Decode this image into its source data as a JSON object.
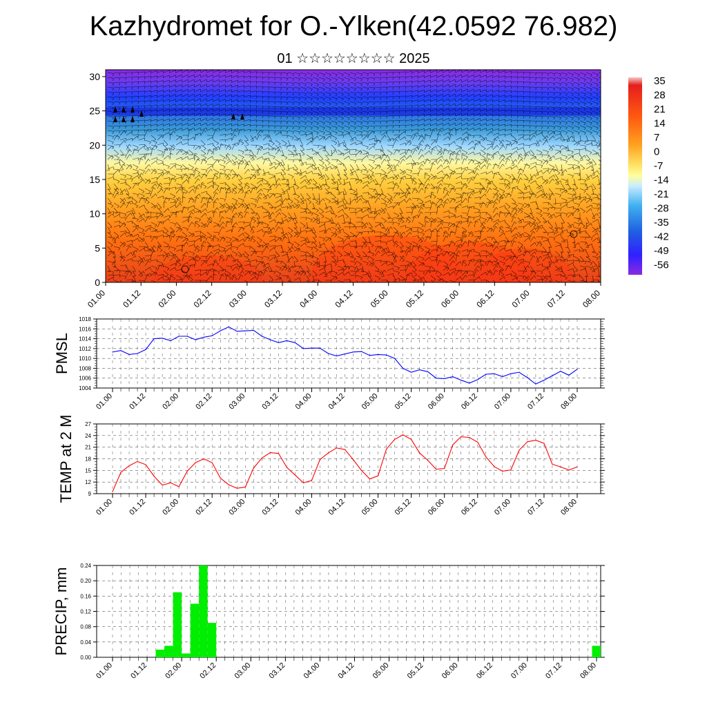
{
  "title": "Kazhydromet for O.-Ylken(42.0592 76.982)",
  "subtitle": "01 ☆☆☆☆☆☆☆☆ 2025",
  "chart_data": [
    {
      "id": "profile",
      "type": "heatmap",
      "y_ticks": [
        "0",
        "5",
        "10",
        "15",
        "20",
        "25",
        "30"
      ],
      "ylim": [
        0,
        31
      ],
      "x_ticks": [
        "01.00",
        "01.12",
        "02.00",
        "02.12",
        "03.00",
        "03.12",
        "04.00",
        "04.12",
        "05.00",
        "05.12",
        "06.00",
        "06.12",
        "07.00",
        "07.12",
        "08.00"
      ],
      "colorbar_labels": [
        "35",
        "28",
        "21",
        "14",
        "7",
        "0",
        "-7",
        "-14",
        "-21",
        "-28",
        "-35",
        "-42",
        "-49",
        "-56"
      ],
      "colors": [
        "#f0f0f0",
        "#e51e1e",
        "#ff7a00",
        "#ffc020",
        "#ffff90",
        "#80d0ff",
        "#2090e0",
        "#2040ff",
        "#8a2be2"
      ]
    },
    {
      "id": "pmsl",
      "type": "line",
      "ylabel": "PMSL",
      "ylim": [
        1004,
        1018
      ],
      "y_ticks": [
        "1004",
        "1006",
        "1008",
        "1010",
        "1012",
        "1014",
        "1016",
        "1018"
      ],
      "x_ticks": [
        "01.00",
        "01.12",
        "02.00",
        "02.12",
        "03.00",
        "03.12",
        "04.00",
        "04.12",
        "05.00",
        "05.12",
        "06.00",
        "06.12",
        "07.00",
        "07.12",
        "08.00"
      ],
      "color": "#0000ff",
      "values": [
        1011.3,
        1011.6,
        1010.8,
        1011.0,
        1011.8,
        1014.0,
        1014.1,
        1013.6,
        1014.5,
        1014.5,
        1013.8,
        1014.3,
        1014.6,
        1015.6,
        1016.4,
        1015.5,
        1015.6,
        1015.7,
        1014.5,
        1013.8,
        1013.2,
        1013.6,
        1013.2,
        1012.0,
        1012.1,
        1012.1,
        1011.0,
        1010.5,
        1010.9,
        1011.3,
        1011.4,
        1010.6,
        1010.8,
        1010.7,
        1010.0,
        1008.0,
        1007.2,
        1007.7,
        1007.3,
        1006.0,
        1005.9,
        1006.3,
        1005.6,
        1005.0,
        1005.7,
        1006.8,
        1006.9,
        1006.3,
        1006.9,
        1007.2,
        1006.1,
        1004.8,
        1005.6,
        1006.5,
        1007.4,
        1006.6,
        1007.8
      ]
    },
    {
      "id": "temp",
      "type": "line",
      "ylabel": "TEMP at 2 M",
      "ylim": [
        9,
        27
      ],
      "y_ticks": [
        "9",
        "12",
        "15",
        "18",
        "21",
        "24",
        "27"
      ],
      "x_ticks": [
        "01.00",
        "01.12",
        "02.00",
        "02.12",
        "03.00",
        "03.12",
        "04.00",
        "04.12",
        "05.00",
        "05.12",
        "06.00",
        "06.12",
        "07.00",
        "07.12",
        "08.00"
      ],
      "color": "#ff0000",
      "values": [
        9.5,
        14.5,
        16.2,
        17.3,
        16.5,
        13.5,
        11.2,
        11.8,
        10.8,
        14.8,
        17.0,
        18.0,
        17.0,
        13.0,
        11.3,
        10.4,
        10.7,
        15.6,
        18.2,
        19.6,
        19.4,
        15.8,
        13.8,
        11.8,
        12.4,
        17.8,
        19.5,
        20.8,
        20.4,
        17.8,
        15.0,
        12.8,
        13.6,
        20.5,
        23.0,
        24.2,
        23.0,
        19.5,
        17.6,
        15.3,
        15.5,
        21.6,
        23.7,
        23.5,
        22.3,
        18.5,
        16.0,
        14.8,
        15.1,
        20.2,
        22.4,
        22.8,
        22.0,
        16.6,
        15.9,
        15.1,
        15.9
      ]
    },
    {
      "id": "precip",
      "type": "bar",
      "ylabel": "PRECIP, mm",
      "ylim": [
        0,
        0.24
      ],
      "y_ticks": [
        "0.00",
        "0.04",
        "0.08",
        "0.12",
        "0.16",
        "0.20",
        "0.24"
      ],
      "x_ticks": [
        "01.00",
        "01.12",
        "02.00",
        "02.12",
        "03.00",
        "03.12",
        "04.00",
        "04.12",
        "05.00",
        "05.12",
        "06.00",
        "06.12",
        "07.00",
        "07.12",
        "08.00"
      ],
      "color": "#00ee00",
      "values": [
        0,
        0,
        0,
        0,
        0,
        0.02,
        0.03,
        0.17,
        0.01,
        0.14,
        0.24,
        0.09,
        0,
        0,
        0,
        0,
        0,
        0,
        0,
        0,
        0,
        0,
        0,
        0,
        0,
        0,
        0,
        0,
        0,
        0,
        0,
        0,
        0,
        0,
        0,
        0,
        0,
        0,
        0,
        0,
        0,
        0,
        0,
        0,
        0,
        0,
        0,
        0,
        0,
        0,
        0,
        0,
        0,
        0,
        0,
        0,
        0.03
      ]
    }
  ]
}
